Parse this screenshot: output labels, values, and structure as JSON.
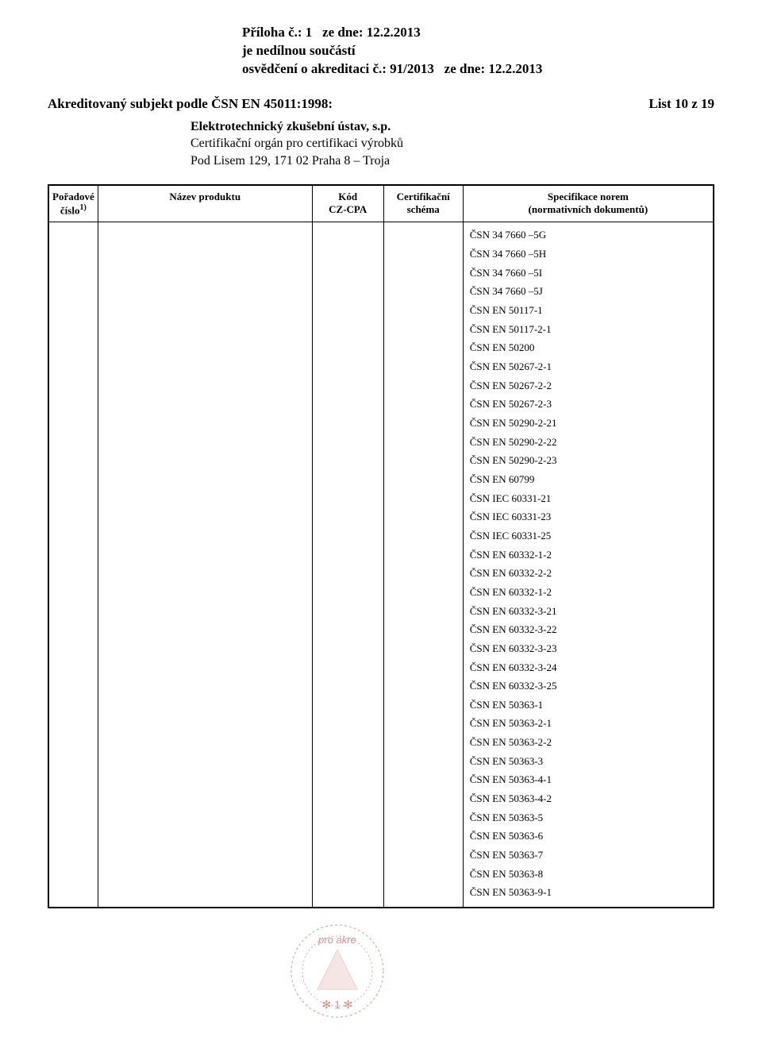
{
  "header": {
    "line1a": "Příloha č.: 1",
    "line1b": "ze dne: 12.2.2013",
    "line2": "je nedílnou součástí",
    "line3a": "osvědčení o akreditaci č.: 91/2013",
    "line3b": "ze dne: 12.2.2013"
  },
  "subject": "Akreditovaný subjekt podle ČSN EN 45011:1998:",
  "list_page": "List 10 z 19",
  "org": {
    "name": "Elektrotechnický zkušební ústav, s.p.",
    "line2": "Certifikační orgán pro certifikaci výrobků",
    "line3": "Pod Lisem 129, 171 02 Praha 8 – Troja"
  },
  "table": {
    "headers": {
      "poradove_l1": "Pořadové",
      "poradove_l2": "číslo",
      "nazev": "Název produktu",
      "kod_l1": "Kód",
      "kod_l2": "CZ-CPA",
      "cert_l1": "Certifikační",
      "cert_l2": "schéma",
      "spec_l1": "Specifikace norem",
      "spec_l2": "(normativních dokumentů)"
    },
    "norms": [
      "ČSN 34 7660 –5G",
      "ČSN 34 7660 –5H",
      "ČSN 34 7660 –5I",
      "ČSN 34 7660 –5J",
      "ČSN EN 50117-1",
      "ČSN EN 50117-2-1",
      "ČSN EN 50200",
      "ČSN EN 50267-2-1",
      "ČSN EN 50267-2-2",
      "ČSN EN 50267-2-3",
      "ČSN EN 50290-2-21",
      "ČSN EN 50290-2-22",
      "ČSN EN 50290-2-23",
      "ČSN EN 60799",
      "ČSN IEC 60331-21",
      "ČSN IEC 60331-23",
      "ČSN IEC 60331-25",
      "ČSN EN 60332-1-2",
      "ČSN EN 60332-2-2",
      "ČSN EN 60332-1-2",
      "ČSN EN 60332-3-21",
      "ČSN EN 60332-3-22",
      "ČSN EN 60332-3-23",
      "ČSN EN 60332-3-24",
      "ČSN EN 60332-3-25",
      "ČSN EN 50363-1",
      "ČSN EN 50363-2-1",
      "ČSN EN 50363-2-2",
      "ČSN EN 50363-3",
      "ČSN EN 50363-4-1",
      "ČSN EN 50363-4-2",
      "ČSN EN 50363-5",
      "ČSN EN 50363-6",
      "ČSN EN 50363-7",
      "ČSN EN 50363-8",
      "ČSN EN 50363-9-1"
    ]
  },
  "stamp": {
    "top_text": "pro akre",
    "number": "1",
    "color": "#d89090",
    "triangle_fill": "#e8b8b8"
  }
}
